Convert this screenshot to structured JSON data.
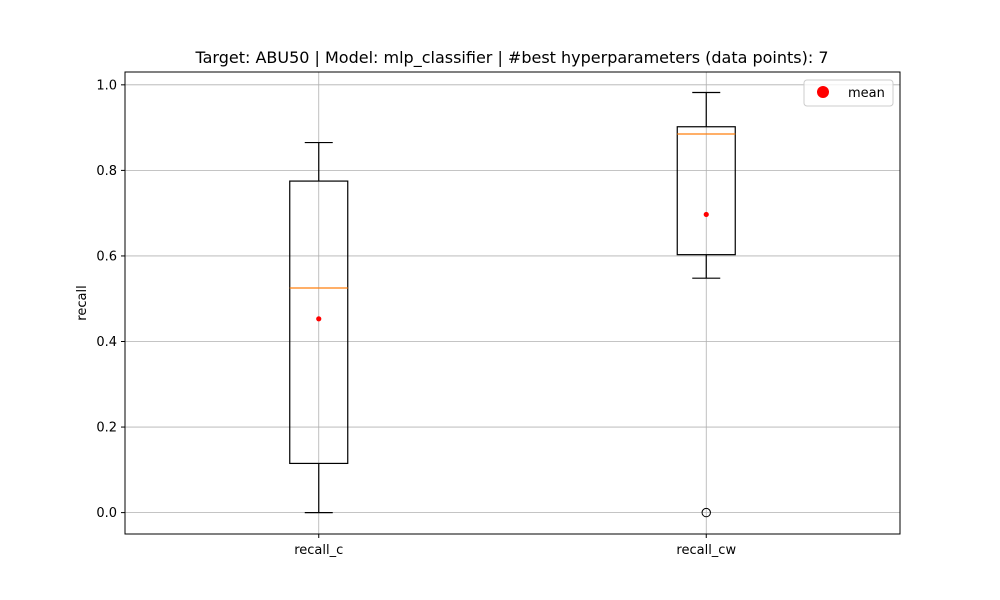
{
  "chart_data": {
    "type": "box",
    "title": "Target: ABU50 | Model: mlp_classifier | #best hyperparameters (data points): 7",
    "xlabel": "",
    "ylabel": "recall",
    "ylim": [
      -0.05,
      1.03
    ],
    "yticks": [
      "0.0",
      "0.2",
      "0.4",
      "0.6",
      "0.8",
      "1.0"
    ],
    "grid": true,
    "legend": {
      "position": "top-right",
      "entries": [
        {
          "label": "mean",
          "color": "#ff0000",
          "marker": "circle"
        }
      ]
    },
    "categories": [
      "recall_c",
      "recall_cw"
    ],
    "boxes": [
      {
        "name": "recall_c",
        "whisker_low": 0.0,
        "q1": 0.115,
        "median": 0.525,
        "q3": 0.775,
        "whisker_high": 0.865,
        "mean": 0.453,
        "outliers": []
      },
      {
        "name": "recall_cw",
        "whisker_low": 0.548,
        "q1": 0.603,
        "median": 0.885,
        "q3": 0.902,
        "whisker_high": 0.982,
        "mean": 0.697,
        "outliers": [
          0.0
        ]
      }
    ],
    "colors": {
      "box": "#000000",
      "median": "#ff7f0e",
      "mean": "#ff0000",
      "grid": "#b0b0b0"
    }
  }
}
